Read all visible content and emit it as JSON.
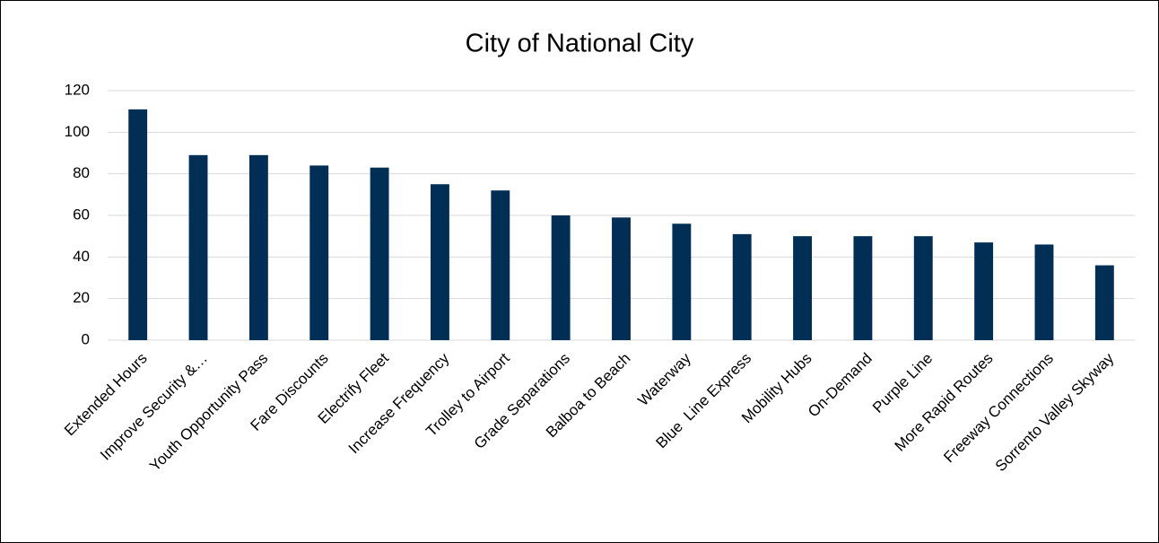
{
  "chart_data": {
    "type": "bar",
    "title": "City of National City",
    "categories": [
      "Extended Hours",
      "Improve Security &…",
      "Youth Opportunity Pass",
      "Fare Discounts",
      "Electrify Fleet",
      "Increase Frequency",
      "Trolley to Airport",
      "Grade Separations",
      "Balboa to Beach",
      "Waterway",
      "Blue  Line Express",
      "Mobility Hubs",
      "On-Demand",
      "Purple Line",
      "More Rapid Routes",
      "Freeway Connections",
      "Sorrento Valley Skyway"
    ],
    "values": [
      111,
      89,
      89,
      84,
      83,
      75,
      72,
      60,
      59,
      56,
      51,
      50,
      50,
      50,
      47,
      46,
      36
    ],
    "color": "#002e55",
    "ylim": [
      0,
      120
    ],
    "yticks": [
      0,
      20,
      40,
      60,
      80,
      100,
      120
    ],
    "grid": true
  }
}
